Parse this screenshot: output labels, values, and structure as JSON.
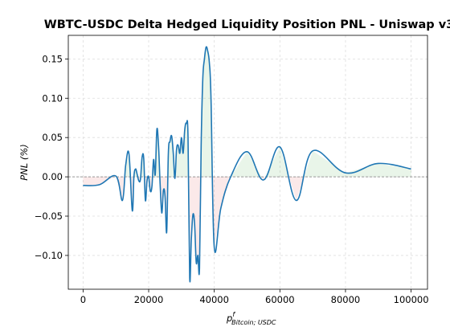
{
  "chart_data": {
    "type": "line",
    "title": "WBTC-USDC Delta Hedged Liquidity Position PNL - Uniswap v3",
    "xlabel": "p",
    "xlabel_superscript": "f",
    "xlabel_subscript": "Bitcoin; USDC",
    "ylabel": "PNL (%)",
    "xlim": [
      -4500,
      105000
    ],
    "ylim": [
      -0.143,
      0.18
    ],
    "x_ticks": [
      0,
      20000,
      40000,
      60000,
      80000,
      100000
    ],
    "x_tick_labels": [
      "0",
      "20000",
      "40000",
      "60000",
      "80000",
      "100000"
    ],
    "y_ticks": [
      -0.1,
      -0.05,
      0.0,
      0.05,
      0.1,
      0.15
    ],
    "y_tick_labels": [
      "−0.10",
      "−0.05",
      "0.00",
      "0.05",
      "0.10",
      "0.15"
    ],
    "grid": true,
    "zero_line": true,
    "colors": {
      "line": "#1f77b4",
      "positive_fill": "#2ca02c",
      "negative_fill": "#d62728",
      "zero_line": "#999999",
      "grid": "#dddddd"
    },
    "series": [
      {
        "x": [
          0,
          5000,
          10000,
          12000,
          13000,
          14000,
          15000,
          15500,
          16000,
          16500,
          17000,
          17500,
          18000,
          18500,
          19000,
          19500,
          20000,
          20500,
          21000,
          21500,
          22000,
          22500,
          23000,
          23500,
          24000,
          24500,
          25000,
          25500,
          26000,
          26500,
          27000,
          27500,
          28000,
          28500,
          29000,
          29500,
          30000,
          30500,
          31000,
          31500,
          32000,
          32500,
          33000,
          33500,
          34000,
          34500,
          35000,
          35500,
          36000,
          36500,
          37000,
          37500,
          38000,
          38500,
          39000,
          40000,
          42000,
          45000,
          50000,
          55000,
          60000,
          65000,
          70000,
          80000,
          90000,
          100000
        ],
        "y": [
          -0.011,
          -0.01,
          0.001,
          -0.03,
          0.015,
          0.029,
          -0.043,
          0.0,
          0.01,
          0.003,
          -0.005,
          -0.003,
          0.025,
          0.023,
          -0.03,
          -0.005,
          0.0,
          -0.018,
          -0.012,
          0.022,
          0.003,
          0.06,
          0.04,
          -0.01,
          -0.046,
          -0.017,
          -0.025,
          -0.07,
          0.03,
          0.045,
          0.052,
          0.03,
          -0.002,
          0.035,
          0.04,
          0.03,
          0.05,
          0.03,
          0.06,
          0.068,
          0.05,
          -0.128,
          -0.08,
          -0.048,
          -0.06,
          -0.109,
          -0.1,
          -0.116,
          0.04,
          0.125,
          0.15,
          0.165,
          0.16,
          0.145,
          0.1,
          -0.09,
          -0.04,
          0.0,
          0.032,
          -0.004,
          0.038,
          -0.03,
          0.033,
          0.005,
          0.017,
          0.01
        ]
      }
    ]
  }
}
